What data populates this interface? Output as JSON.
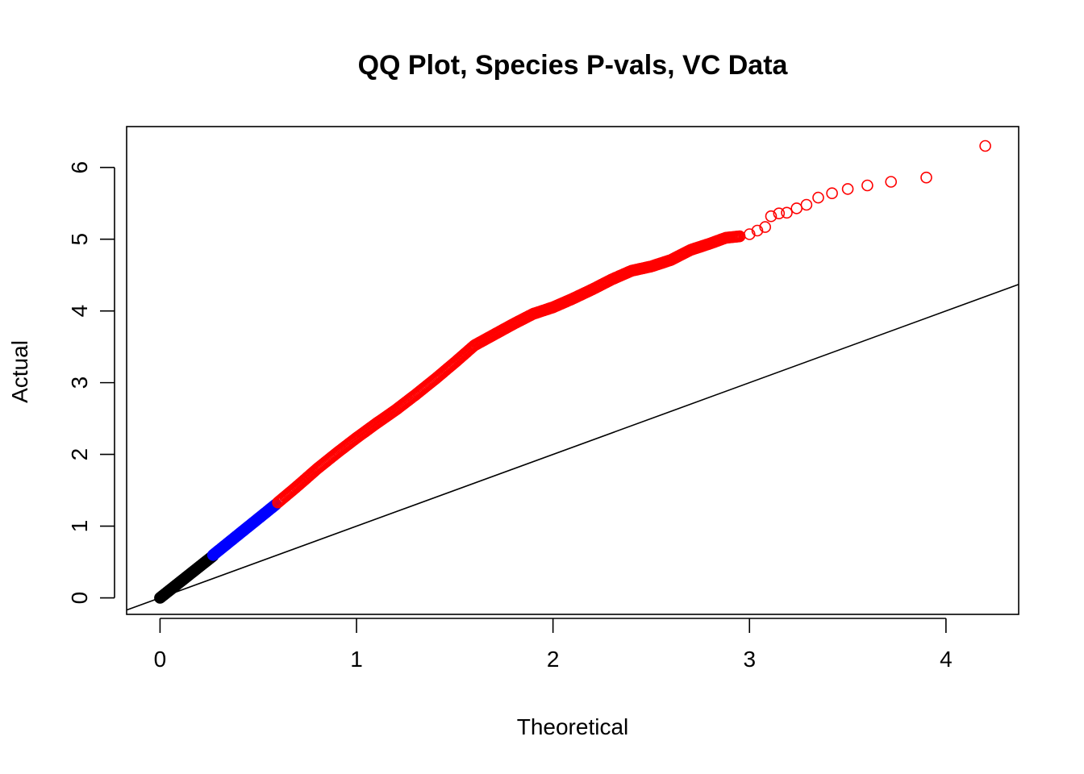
{
  "chart_data": {
    "type": "scatter",
    "title": "QQ Plot, Species P-vals, VC Data",
    "xlabel": "Theoretical",
    "ylabel": "Actual",
    "xlim": [
      -0.17,
      4.37
    ],
    "ylim": [
      -0.23,
      6.57
    ],
    "xticks": [
      "0",
      "1",
      "2",
      "3",
      "4"
    ],
    "yticks": [
      "0",
      "1",
      "2",
      "3",
      "4",
      "5",
      "6"
    ],
    "grid": false,
    "legend": "none",
    "reference_line": {
      "slope": 1,
      "intercept": 0,
      "color": "#000000"
    },
    "series": [
      {
        "color": "#000000",
        "marker": "open-circle",
        "x_range": [
          0.0,
          0.27
        ],
        "slope": 2.17
      },
      {
        "color": "#0000ff",
        "marker": "open-circle",
        "x_range": [
          0.27,
          0.59
        ],
        "slope": 2.21
      },
      {
        "color": "#ff0000",
        "marker": "open-circle",
        "points": [
          [
            0.6,
            1.33
          ],
          [
            0.7,
            1.56
          ],
          [
            0.8,
            1.8
          ],
          [
            0.9,
            2.02
          ],
          [
            1.0,
            2.23
          ],
          [
            1.1,
            2.43
          ],
          [
            1.2,
            2.62
          ],
          [
            1.3,
            2.83
          ],
          [
            1.4,
            3.05
          ],
          [
            1.5,
            3.28
          ],
          [
            1.6,
            3.52
          ],
          [
            1.7,
            3.67
          ],
          [
            1.8,
            3.82
          ],
          [
            1.9,
            3.96
          ],
          [
            2.0,
            4.05
          ],
          [
            2.1,
            4.17
          ],
          [
            2.2,
            4.3
          ],
          [
            2.3,
            4.44
          ],
          [
            2.4,
            4.56
          ],
          [
            2.5,
            4.62
          ],
          [
            2.6,
            4.71
          ],
          [
            2.7,
            4.85
          ],
          [
            2.8,
            4.94
          ],
          [
            2.88,
            5.02
          ],
          [
            2.95,
            5.04
          ],
          [
            3.0,
            5.07
          ],
          [
            3.04,
            5.12
          ],
          [
            3.08,
            5.17
          ],
          [
            3.11,
            5.32
          ],
          [
            3.15,
            5.36
          ],
          [
            3.19,
            5.37
          ],
          [
            3.24,
            5.43
          ],
          [
            3.29,
            5.48
          ],
          [
            3.35,
            5.58
          ],
          [
            3.42,
            5.64
          ],
          [
            3.5,
            5.7
          ],
          [
            3.6,
            5.75
          ],
          [
            3.72,
            5.8
          ],
          [
            3.9,
            5.86
          ],
          [
            4.2,
            6.3
          ]
        ]
      }
    ]
  }
}
